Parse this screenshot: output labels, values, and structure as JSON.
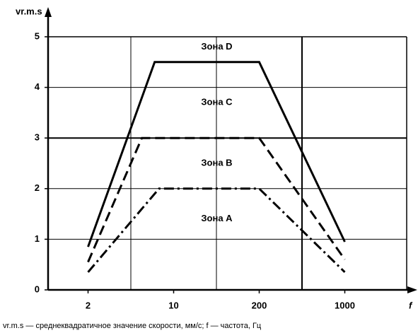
{
  "chart_data": {
    "type": "line",
    "y_label": "vr.m.s",
    "x_label": "f",
    "caption": "vr.m.s — среднеквадратичное значение скорости, мм/с; f — частота, Гц",
    "xticks": [
      2,
      10,
      200,
      1000
    ],
    "ylim": [
      0,
      5
    ],
    "yticks": [
      0,
      1,
      2,
      3,
      4,
      5
    ],
    "grid": true,
    "series": [
      {
        "x": [
          2,
          7,
          200,
          1000
        ],
        "values": [
          0.85,
          4.5,
          4.5,
          0.95
        ],
        "color": "#000000",
        "style": "solid"
      },
      {
        "x": [
          2,
          5.5,
          200,
          1000
        ],
        "values": [
          0.55,
          3,
          3,
          0.6
        ],
        "color": "#000000",
        "style": "dashed"
      },
      {
        "x": [
          2,
          7.6,
          200,
          1000
        ],
        "values": [
          0.35,
          2,
          2,
          0.35
        ],
        "color": "#000000",
        "style": "dashdot"
      }
    ],
    "annotations": [
      {
        "text": "Зона D",
        "x": 200,
        "y": 4.8
      },
      {
        "text": "Зона C",
        "x": 200,
        "y": 3.7
      },
      {
        "text": "Зона B",
        "x": 200,
        "y": 2.5
      },
      {
        "text": "Зона A",
        "x": 200,
        "y": 1.4
      }
    ]
  }
}
